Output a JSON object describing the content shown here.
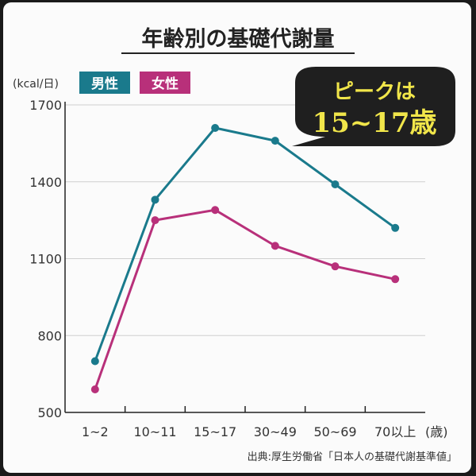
{
  "chart_data": {
    "type": "line",
    "title": "年齢別の基礎代謝量",
    "ylabel": "(kcal/日)",
    "categories": [
      "1~2",
      "10~11",
      "15~17",
      "30~49",
      "50~69",
      "70以上"
    ],
    "x_unit_suffix": "(歳)",
    "ylim": [
      500,
      1700
    ],
    "yticks": [
      500,
      800,
      1100,
      1400,
      1700
    ],
    "grid": true,
    "legend_position": "top-left",
    "series": [
      {
        "name": "男性",
        "color": "#1a7a8c",
        "values": [
          700,
          1330,
          1610,
          1560,
          1390,
          1220
        ]
      },
      {
        "name": "女性",
        "color": "#b8307a",
        "values": [
          590,
          1250,
          1290,
          1150,
          1070,
          1020
        ]
      }
    ],
    "annotation": {
      "line1": "ピークは",
      "line2": "15~17歳"
    },
    "source": "出典:厚生労働省「日本人の基礎代謝基準値」"
  }
}
